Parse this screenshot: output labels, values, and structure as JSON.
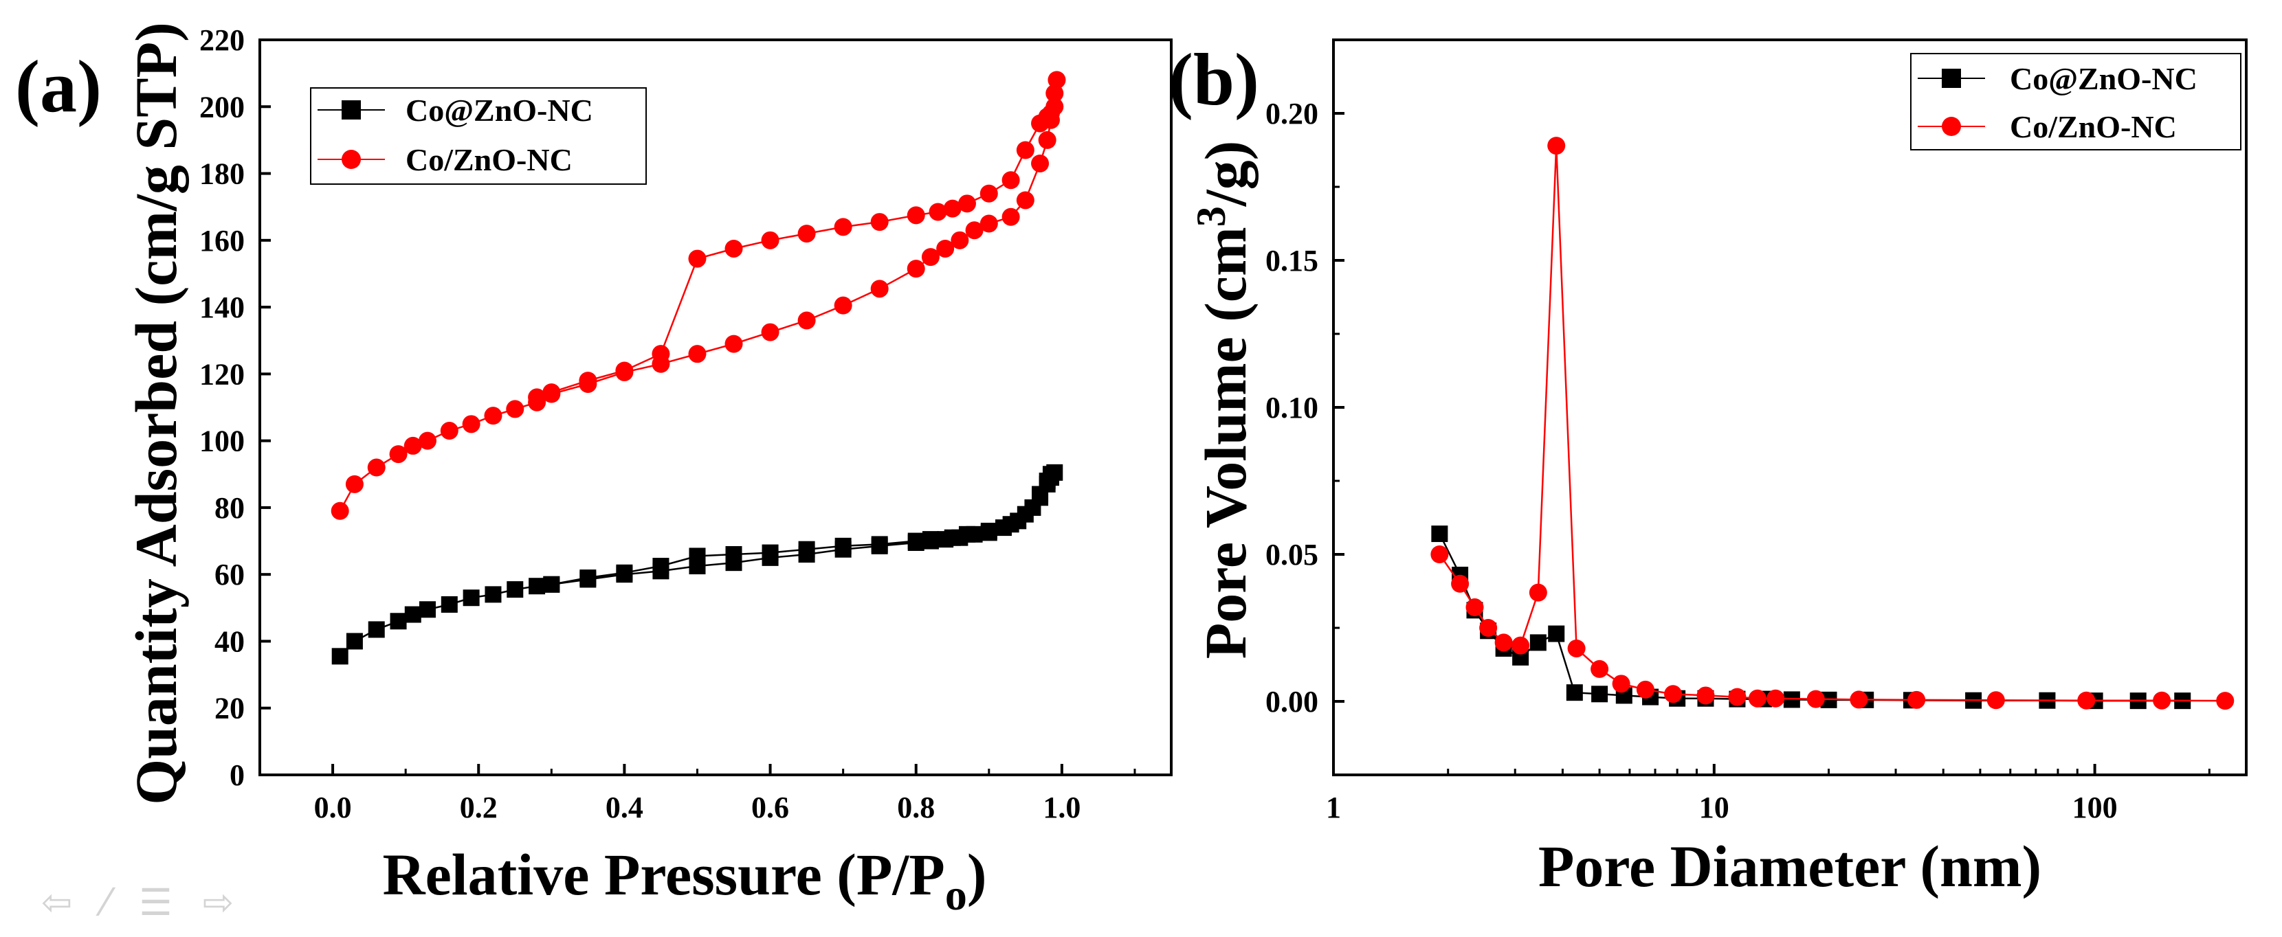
{
  "chart_data": [
    {
      "type": "line",
      "panel_label": "(a)",
      "title": "",
      "xlabel_main": "Relative Pressure (P/P",
      "xlabel_sub": "o",
      "xlabel_end": ")",
      "ylabel": "Quantity Adsorbed (cm/g STP)",
      "xlim": [
        -0.1,
        1.15
      ],
      "ylim": [
        0,
        220
      ],
      "xticks": [
        0.0,
        0.2,
        0.4,
        0.6,
        0.8,
        1.0
      ],
      "xtick_labels": [
        "0.0",
        "0.2",
        "0.4",
        "0.6",
        "0.8",
        "1.0"
      ],
      "yticks": [
        0,
        20,
        40,
        60,
        80,
        100,
        120,
        140,
        160,
        180,
        200,
        220
      ],
      "ytick_labels": [
        "0",
        "20",
        "40",
        "60",
        "80",
        "100",
        "120",
        "140",
        "160",
        "180",
        "200",
        "220"
      ],
      "grid": false,
      "legend_position": "top-left",
      "series": [
        {
          "name": "Co@ZnO-NC",
          "color": "#000000",
          "marker": "square",
          "x": [
            0.01,
            0.03,
            0.06,
            0.09,
            0.11,
            0.13,
            0.16,
            0.19,
            0.22,
            0.25,
            0.28,
            0.3,
            0.35,
            0.4,
            0.45,
            0.5,
            0.55,
            0.6,
            0.65,
            0.7,
            0.75,
            0.8,
            0.82,
            0.84,
            0.86,
            0.88,
            0.9,
            0.92,
            0.94,
            0.96,
            0.97,
            0.98,
            0.985,
            0.99,
            0.985,
            0.98,
            0.97,
            0.95,
            0.93,
            0.9,
            0.87,
            0.85,
            0.82,
            0.8,
            0.75,
            0.7,
            0.65,
            0.6,
            0.55,
            0.5,
            0.45,
            0.4,
            0.35,
            0.3
          ],
          "y": [
            35.5,
            40,
            43.5,
            46,
            48,
            49.5,
            51,
            53,
            54,
            55.5,
            56.5,
            57,
            58.5,
            60,
            61,
            62.5,
            63.5,
            65,
            66,
            67.5,
            68.5,
            69.5,
            70,
            70.5,
            71,
            72,
            72.5,
            74,
            76,
            80,
            84,
            87,
            89,
            90.5,
            90,
            88,
            83,
            78,
            75,
            73,
            72,
            71,
            70.5,
            70,
            69,
            68.5,
            67.5,
            66.5,
            66,
            65.5,
            62.5,
            60.5,
            59,
            57
          ]
        },
        {
          "name": "Co/ZnO-NC",
          "color": "#ff0000",
          "marker": "circle",
          "x": [
            0.01,
            0.03,
            0.06,
            0.09,
            0.11,
            0.13,
            0.16,
            0.19,
            0.22,
            0.25,
            0.28,
            0.3,
            0.35,
            0.4,
            0.45,
            0.5,
            0.55,
            0.6,
            0.65,
            0.7,
            0.75,
            0.8,
            0.82,
            0.84,
            0.86,
            0.88,
            0.9,
            0.93,
            0.95,
            0.97,
            0.98,
            0.985,
            0.99,
            0.993,
            0.99,
            0.985,
            0.98,
            0.97,
            0.95,
            0.93,
            0.9,
            0.87,
            0.85,
            0.83,
            0.8,
            0.75,
            0.7,
            0.65,
            0.6,
            0.55,
            0.5,
            0.45,
            0.4,
            0.35,
            0.3,
            0.28
          ],
          "y": [
            79,
            87,
            92,
            96,
            98.5,
            100,
            103,
            105,
            107.5,
            109.5,
            111.5,
            114,
            117,
            120.5,
            123,
            126,
            129,
            132.5,
            136,
            140.5,
            145.5,
            151.5,
            155,
            157.5,
            160,
            163,
            165,
            167,
            172,
            183,
            190,
            196,
            200,
            208,
            204,
            198,
            197,
            195,
            187,
            178,
            174,
            171,
            169.5,
            168.5,
            167.5,
            165.5,
            164,
            162,
            160,
            157.5,
            154.5,
            126,
            121,
            118,
            114.5,
            113
          ]
        }
      ]
    },
    {
      "type": "line",
      "panel_label": "(b)",
      "title": "",
      "xlabel": "Pore Diameter (nm)",
      "ylabel_main": "Pore Volume (cm",
      "ylabel_sup": "3",
      "ylabel_end": "/g)",
      "xscale": "log",
      "xlim": [
        1,
        250
      ],
      "ylim": [
        -0.025,
        0.225
      ],
      "xticks": [
        1,
        10,
        100
      ],
      "xtick_labels": [
        "1",
        "10",
        "100"
      ],
      "yticks": [
        0.0,
        0.05,
        0.1,
        0.15,
        0.2
      ],
      "ytick_labels": [
        "0.00",
        "0.05",
        "0.10",
        "0.15",
        "0.20"
      ],
      "grid": false,
      "legend_position": "top-right",
      "series": [
        {
          "name": "Co@ZnO-NC",
          "color": "#000000",
          "marker": "square",
          "x": [
            1.9,
            2.15,
            2.35,
            2.55,
            2.8,
            3.1,
            3.45,
            3.85,
            4.3,
            5.0,
            5.8,
            6.8,
            8.0,
            9.5,
            11.5,
            13.5,
            16.0,
            20.0,
            25.0,
            33.0,
            48.0,
            75.0,
            100.0,
            130.0,
            170.0
          ],
          "y": [
            0.057,
            0.043,
            0.031,
            0.024,
            0.018,
            0.015,
            0.02,
            0.023,
            0.003,
            0.0025,
            0.002,
            0.0015,
            0.001,
            0.001,
            0.0008,
            0.0008,
            0.0006,
            0.0005,
            0.0005,
            0.0004,
            0.0003,
            0.0003,
            0.0002,
            0.0002,
            0.0002
          ]
        },
        {
          "name": "Co/ZnO-NC",
          "color": "#ff0000",
          "marker": "circle",
          "x": [
            1.9,
            2.15,
            2.35,
            2.55,
            2.8,
            3.1,
            3.45,
            3.85,
            4.35,
            5.0,
            5.7,
            6.6,
            7.8,
            9.5,
            11.5,
            13.0,
            14.5,
            18.5,
            24.0,
            34.0,
            55.0,
            95.0,
            150.0,
            220.0
          ],
          "y": [
            0.05,
            0.04,
            0.032,
            0.025,
            0.02,
            0.019,
            0.037,
            0.189,
            0.018,
            0.011,
            0.006,
            0.004,
            0.0025,
            0.002,
            0.0015,
            0.001,
            0.001,
            0.0008,
            0.0006,
            0.0005,
            0.0004,
            0.0003,
            0.0003,
            0.0002
          ]
        }
      ]
    }
  ],
  "nav_icons": [
    "prev-arrow-icon",
    "pen-icon",
    "menu-icon",
    "next-arrow-icon"
  ],
  "nav_glyphs": [
    "⇦",
    "⁄",
    "☰",
    "⇨"
  ]
}
